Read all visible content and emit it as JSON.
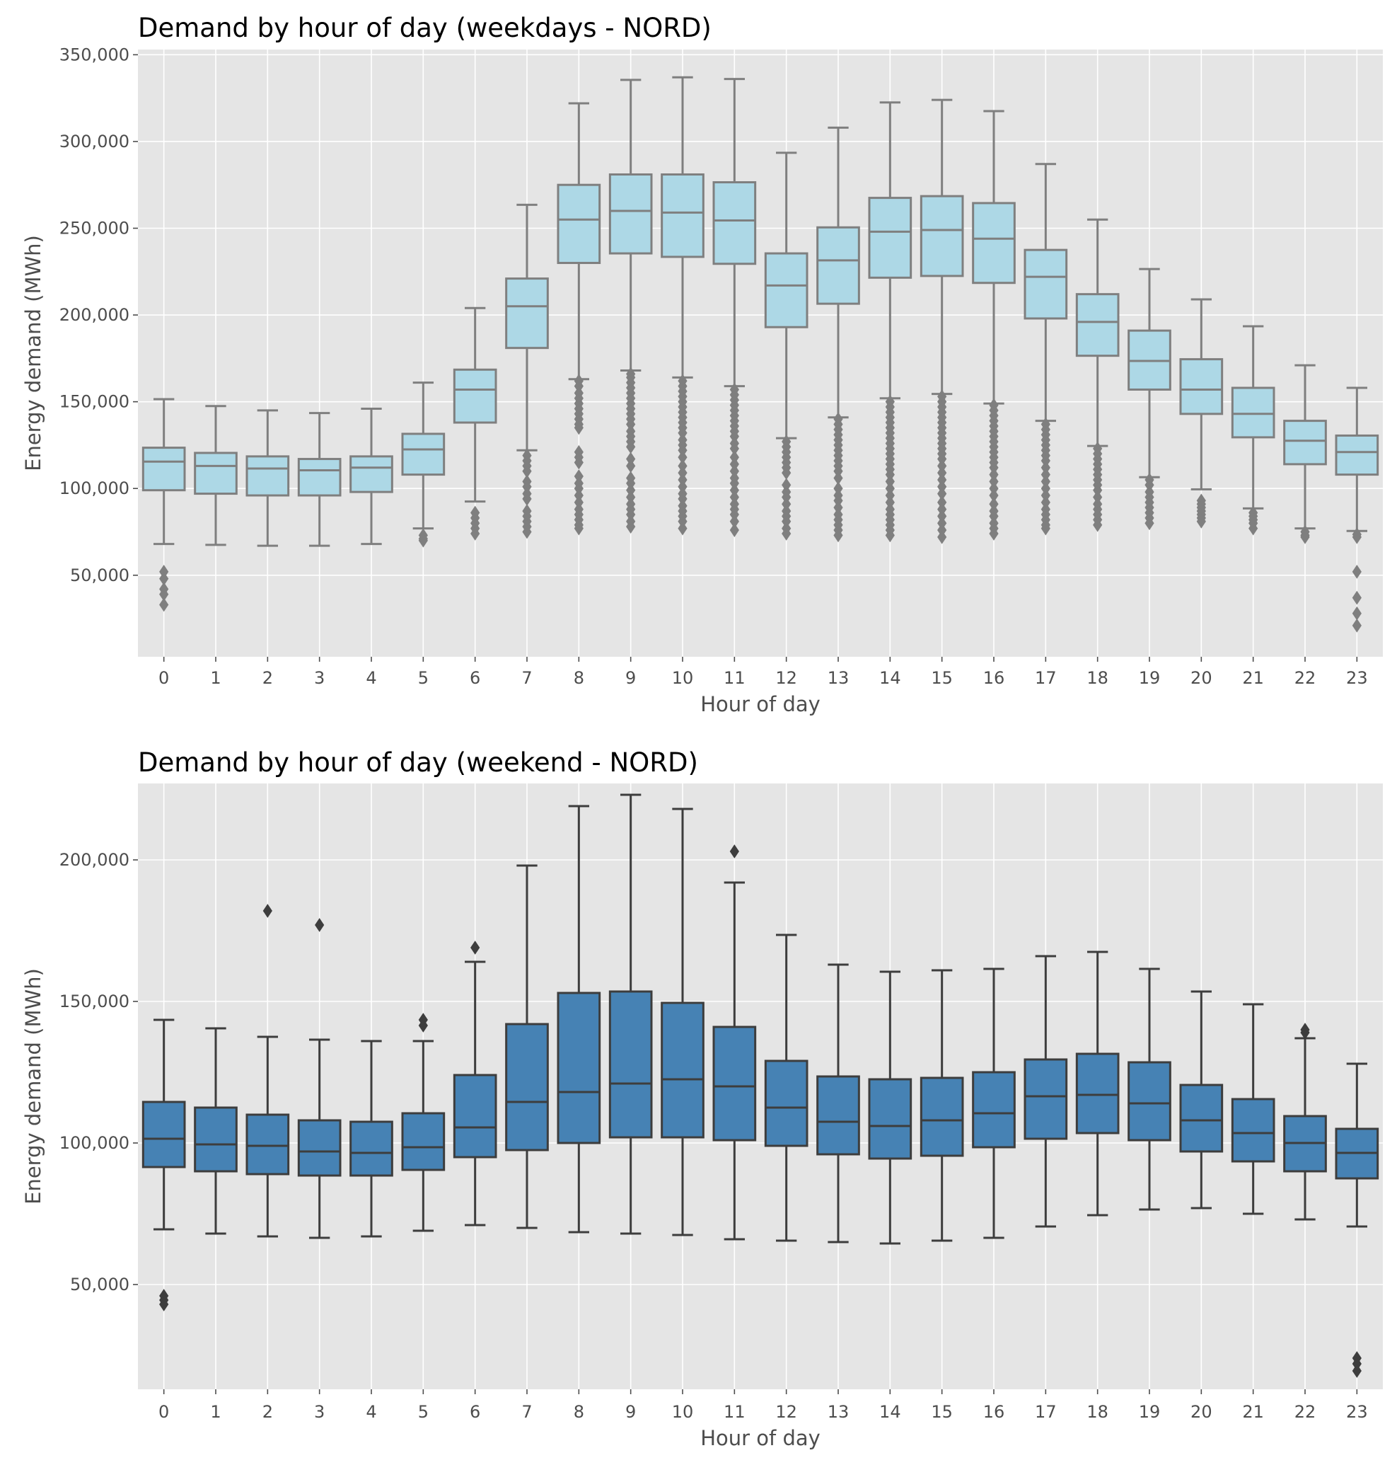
{
  "chart_data": [
    {
      "type": "box",
      "title": "Demand by hour of day (weekdays - NORD)",
      "xlabel": "Hour of day",
      "ylabel": "Energy demand (MWh)",
      "ylim": [
        3000,
        353000
      ],
      "yticks": [
        50000,
        100000,
        150000,
        200000,
        250000,
        300000,
        350000
      ],
      "ytick_labels": [
        "50,000",
        "100,000",
        "150,000",
        "200,000",
        "250,000",
        "300,000",
        "350,000"
      ],
      "box_color": "#add8e6",
      "line_color": "#7f7f7f",
      "categories": [
        "0",
        "1",
        "2",
        "3",
        "4",
        "5",
        "6",
        "7",
        "8",
        "9",
        "10",
        "11",
        "12",
        "13",
        "14",
        "15",
        "16",
        "17",
        "18",
        "19",
        "20",
        "21",
        "22",
        "23"
      ],
      "boxes": [
        {
          "whislo": 68000,
          "q1": 99000,
          "med": 115500,
          "q3": 123500,
          "whishi": 151500,
          "fliers": [
            52000,
            48000,
            42000,
            39000,
            33000
          ]
        },
        {
          "whislo": 67500,
          "q1": 97000,
          "med": 113000,
          "q3": 120500,
          "whishi": 147500,
          "fliers": []
        },
        {
          "whislo": 67000,
          "q1": 96000,
          "med": 111500,
          "q3": 118500,
          "whishi": 145000,
          "fliers": []
        },
        {
          "whislo": 67000,
          "q1": 96000,
          "med": 110500,
          "q3": 117000,
          "whishi": 143500,
          "fliers": []
        },
        {
          "whislo": 68000,
          "q1": 98000,
          "med": 112000,
          "q3": 118500,
          "whishi": 146000,
          "fliers": []
        },
        {
          "whislo": 77000,
          "q1": 108000,
          "med": 122500,
          "q3": 131500,
          "whishi": 161000,
          "fliers": [
            73000,
            71000,
            70000
          ]
        },
        {
          "whislo": 92500,
          "q1": 138000,
          "med": 157000,
          "q3": 168500,
          "whishi": 204000,
          "fliers": [
            86000,
            83000,
            80000,
            77000,
            74000
          ]
        },
        {
          "whislo": 122000,
          "q1": 181000,
          "med": 205000,
          "q3": 221000,
          "whishi": 263500,
          "fliers": [
            119000,
            116000,
            113000,
            110000,
            104000,
            101000,
            97000,
            94000,
            87000,
            84000,
            81000,
            78000,
            75000
          ]
        },
        {
          "whislo": 163000,
          "q1": 230000,
          "med": 255000,
          "q3": 275000,
          "whishi": 322000,
          "fliers": [
            162000,
            159000,
            155000,
            152000,
            149000,
            146000,
            143000,
            140000,
            137000,
            135000,
            121000,
            118000,
            115000,
            107000,
            103000,
            100000,
            96000,
            92000,
            88000,
            85000,
            82000,
            79000,
            77000
          ]
        },
        {
          "whislo": 168000,
          "q1": 235500,
          "med": 260000,
          "q3": 281000,
          "whishi": 335500,
          "fliers": [
            166000,
            164000,
            161000,
            158000,
            155000,
            152000,
            149000,
            146000,
            143000,
            140000,
            137000,
            133000,
            130000,
            127000,
            124000,
            117000,
            113000,
            106000,
            103000,
            99000,
            95000,
            91000,
            88000,
            85000,
            81000,
            78000
          ]
        },
        {
          "whislo": 164000,
          "q1": 233500,
          "med": 259000,
          "q3": 281000,
          "whishi": 337000,
          "fliers": [
            162000,
            159000,
            156000,
            153000,
            150000,
            147000,
            144000,
            141000,
            138000,
            135000,
            132000,
            128000,
            125000,
            122000,
            118000,
            113000,
            109000,
            105000,
            101000,
            97000,
            94000,
            90000,
            87000,
            84000,
            81000,
            77000
          ]
        },
        {
          "whislo": 159000,
          "q1": 229500,
          "med": 254500,
          "q3": 276500,
          "whishi": 336000,
          "fliers": [
            157000,
            154000,
            151000,
            148000,
            145000,
            142000,
            139000,
            136000,
            133000,
            130000,
            126000,
            123000,
            118000,
            114000,
            110000,
            106000,
            103000,
            99000,
            95000,
            91000,
            88000,
            85000,
            81000,
            76000
          ]
        },
        {
          "whislo": 129000,
          "q1": 193000,
          "med": 217000,
          "q3": 235500,
          "whishi": 293500,
          "fliers": [
            127000,
            124000,
            121000,
            118000,
            115000,
            112000,
            109000,
            102000,
            98000,
            95000,
            91000,
            87000,
            84000,
            81000,
            77000,
            74000
          ]
        },
        {
          "whislo": 141000,
          "q1": 206500,
          "med": 231500,
          "q3": 250500,
          "whishi": 308000,
          "fliers": [
            140000,
            137000,
            134000,
            131000,
            128000,
            125000,
            122000,
            119000,
            116000,
            113000,
            110000,
            106000,
            100000,
            96000,
            93000,
            89000,
            85000,
            82000,
            79000,
            76000,
            73000
          ]
        },
        {
          "whislo": 152000,
          "q1": 221500,
          "med": 248000,
          "q3": 267500,
          "whishi": 322500,
          "fliers": [
            150000,
            147000,
            144000,
            141000,
            138000,
            135000,
            132000,
            129000,
            126000,
            123000,
            120000,
            117000,
            114000,
            111000,
            108000,
            104000,
            100000,
            96000,
            92000,
            88000,
            85000,
            82000,
            79000,
            76000,
            73000
          ]
        },
        {
          "whislo": 154500,
          "q1": 222500,
          "med": 249000,
          "q3": 268500,
          "whishi": 324000,
          "fliers": [
            153000,
            150000,
            147000,
            144000,
            141000,
            138000,
            135000,
            132000,
            129000,
            126000,
            123000,
            120000,
            117000,
            113000,
            109000,
            105000,
            101000,
            97000,
            92000,
            88000,
            84000,
            80000,
            76000,
            72000
          ]
        },
        {
          "whislo": 149000,
          "q1": 218500,
          "med": 244000,
          "q3": 264500,
          "whishi": 317500,
          "fliers": [
            148000,
            145000,
            142000,
            139000,
            136000,
            133000,
            130000,
            127000,
            124000,
            121000,
            118000,
            115000,
            112000,
            108000,
            104000,
            100000,
            96000,
            91000,
            87000,
            84000,
            80000,
            77000,
            74000
          ]
        },
        {
          "whislo": 139000,
          "q1": 198000,
          "med": 222000,
          "q3": 237500,
          "whishi": 287000,
          "fliers": [
            137000,
            134000,
            131000,
            128000,
            125000,
            122000,
            119000,
            116000,
            112000,
            108000,
            104000,
            100000,
            96000,
            92000,
            88000,
            85000,
            82000,
            79000,
            77000
          ]
        },
        {
          "whislo": 124500,
          "q1": 176500,
          "med": 196000,
          "q3": 212000,
          "whishi": 255000,
          "fliers": [
            123000,
            120000,
            117000,
            114000,
            111000,
            108000,
            105000,
            102000,
            99000,
            95000,
            91000,
            88000,
            85000,
            82000,
            79000
          ]
        },
        {
          "whislo": 106500,
          "q1": 157000,
          "med": 173500,
          "q3": 191000,
          "whishi": 226500,
          "fliers": [
            105000,
            102000,
            98000,
            95000,
            92000,
            89000,
            86000,
            83000,
            80000
          ]
        },
        {
          "whislo": 99500,
          "q1": 143000,
          "med": 157000,
          "q3": 174500,
          "whishi": 209000,
          "fliers": [
            93000,
            91000,
            89000,
            87000,
            85000,
            83000,
            81000
          ]
        },
        {
          "whislo": 88500,
          "q1": 129500,
          "med": 143000,
          "q3": 158000,
          "whishi": 193500,
          "fliers": [
            86000,
            84000,
            82000,
            80000,
            77000
          ]
        },
        {
          "whislo": 77000,
          "q1": 114000,
          "med": 127500,
          "q3": 139000,
          "whishi": 171000,
          "fliers": [
            75000,
            73000,
            72000
          ]
        },
        {
          "whislo": 75500,
          "q1": 108000,
          "med": 121000,
          "q3": 130500,
          "whishi": 158000,
          "fliers": [
            73500,
            72000,
            52000,
            37000,
            28000,
            21000
          ]
        }
      ]
    },
    {
      "type": "box",
      "title": "Demand by hour of day (weekend - NORD)",
      "xlabel": "Hour of day",
      "ylabel": "Energy demand (MWh)",
      "ylim": [
        13000,
        227000
      ],
      "yticks": [
        50000,
        100000,
        150000,
        200000
      ],
      "ytick_labels": [
        "50,000",
        "100,000",
        "150,000",
        "200,000"
      ],
      "box_color": "#4682b4",
      "line_color": "#3d3d3d",
      "categories": [
        "0",
        "1",
        "2",
        "3",
        "4",
        "5",
        "6",
        "7",
        "8",
        "9",
        "10",
        "11",
        "12",
        "13",
        "14",
        "15",
        "16",
        "17",
        "18",
        "19",
        "20",
        "21",
        "22",
        "23"
      ],
      "boxes": [
        {
          "whislo": 69500,
          "q1": 91500,
          "med": 101500,
          "q3": 114500,
          "whishi": 143500,
          "fliers": [
            46000,
            44500,
            43000
          ]
        },
        {
          "whislo": 68000,
          "q1": 90000,
          "med": 99500,
          "q3": 112500,
          "whishi": 140500,
          "fliers": []
        },
        {
          "whislo": 67000,
          "q1": 89000,
          "med": 99000,
          "q3": 110000,
          "whishi": 137500,
          "fliers": [
            182000
          ]
        },
        {
          "whislo": 66500,
          "q1": 88500,
          "med": 97000,
          "q3": 108000,
          "whishi": 136500,
          "fliers": [
            177000
          ]
        },
        {
          "whislo": 67000,
          "q1": 88500,
          "med": 96500,
          "q3": 107500,
          "whishi": 136000,
          "fliers": []
        },
        {
          "whislo": 69000,
          "q1": 90500,
          "med": 98500,
          "q3": 110500,
          "whishi": 136000,
          "fliers": [
            143500,
            141500
          ]
        },
        {
          "whislo": 71000,
          "q1": 95000,
          "med": 105500,
          "q3": 124000,
          "whishi": 164000,
          "fliers": [
            169000
          ]
        },
        {
          "whislo": 70000,
          "q1": 97500,
          "med": 114500,
          "q3": 142000,
          "whishi": 198000,
          "fliers": []
        },
        {
          "whislo": 68500,
          "q1": 100000,
          "med": 118000,
          "q3": 153000,
          "whishi": 219000,
          "fliers": []
        },
        {
          "whislo": 68000,
          "q1": 102000,
          "med": 121000,
          "q3": 153500,
          "whishi": 223000,
          "fliers": []
        },
        {
          "whislo": 67500,
          "q1": 102000,
          "med": 122500,
          "q3": 149500,
          "whishi": 218000,
          "fliers": []
        },
        {
          "whislo": 66000,
          "q1": 101000,
          "med": 120000,
          "q3": 141000,
          "whishi": 192000,
          "fliers": [
            203000
          ]
        },
        {
          "whislo": 65500,
          "q1": 99000,
          "med": 112500,
          "q3": 129000,
          "whishi": 173500,
          "fliers": []
        },
        {
          "whislo": 65000,
          "q1": 96000,
          "med": 107500,
          "q3": 123500,
          "whishi": 163000,
          "fliers": []
        },
        {
          "whislo": 64500,
          "q1": 94500,
          "med": 106000,
          "q3": 122500,
          "whishi": 160500,
          "fliers": []
        },
        {
          "whislo": 65500,
          "q1": 95500,
          "med": 108000,
          "q3": 123000,
          "whishi": 161000,
          "fliers": []
        },
        {
          "whislo": 66500,
          "q1": 98500,
          "med": 110500,
          "q3": 125000,
          "whishi": 161500,
          "fliers": []
        },
        {
          "whislo": 70500,
          "q1": 101500,
          "med": 116500,
          "q3": 129500,
          "whishi": 166000,
          "fliers": []
        },
        {
          "whislo": 74500,
          "q1": 103500,
          "med": 117000,
          "q3": 131500,
          "whishi": 167500,
          "fliers": []
        },
        {
          "whislo": 76500,
          "q1": 101000,
          "med": 114000,
          "q3": 128500,
          "whishi": 161500,
          "fliers": []
        },
        {
          "whislo": 77000,
          "q1": 97000,
          "med": 108000,
          "q3": 120500,
          "whishi": 153500,
          "fliers": []
        },
        {
          "whislo": 75000,
          "q1": 93500,
          "med": 103500,
          "q3": 115500,
          "whishi": 149000,
          "fliers": []
        },
        {
          "whislo": 73000,
          "q1": 90000,
          "med": 100000,
          "q3": 109500,
          "whishi": 137000,
          "fliers": [
            140000,
            139000
          ]
        },
        {
          "whislo": 70500,
          "q1": 87500,
          "med": 96500,
          "q3": 105000,
          "whishi": 128000,
          "fliers": [
            24000,
            22000,
            19500
          ]
        }
      ]
    }
  ],
  "style": {
    "panel_background": "#e5e5e5",
    "grid_color": "#ffffff",
    "tick_color": "#4d4d4d"
  }
}
